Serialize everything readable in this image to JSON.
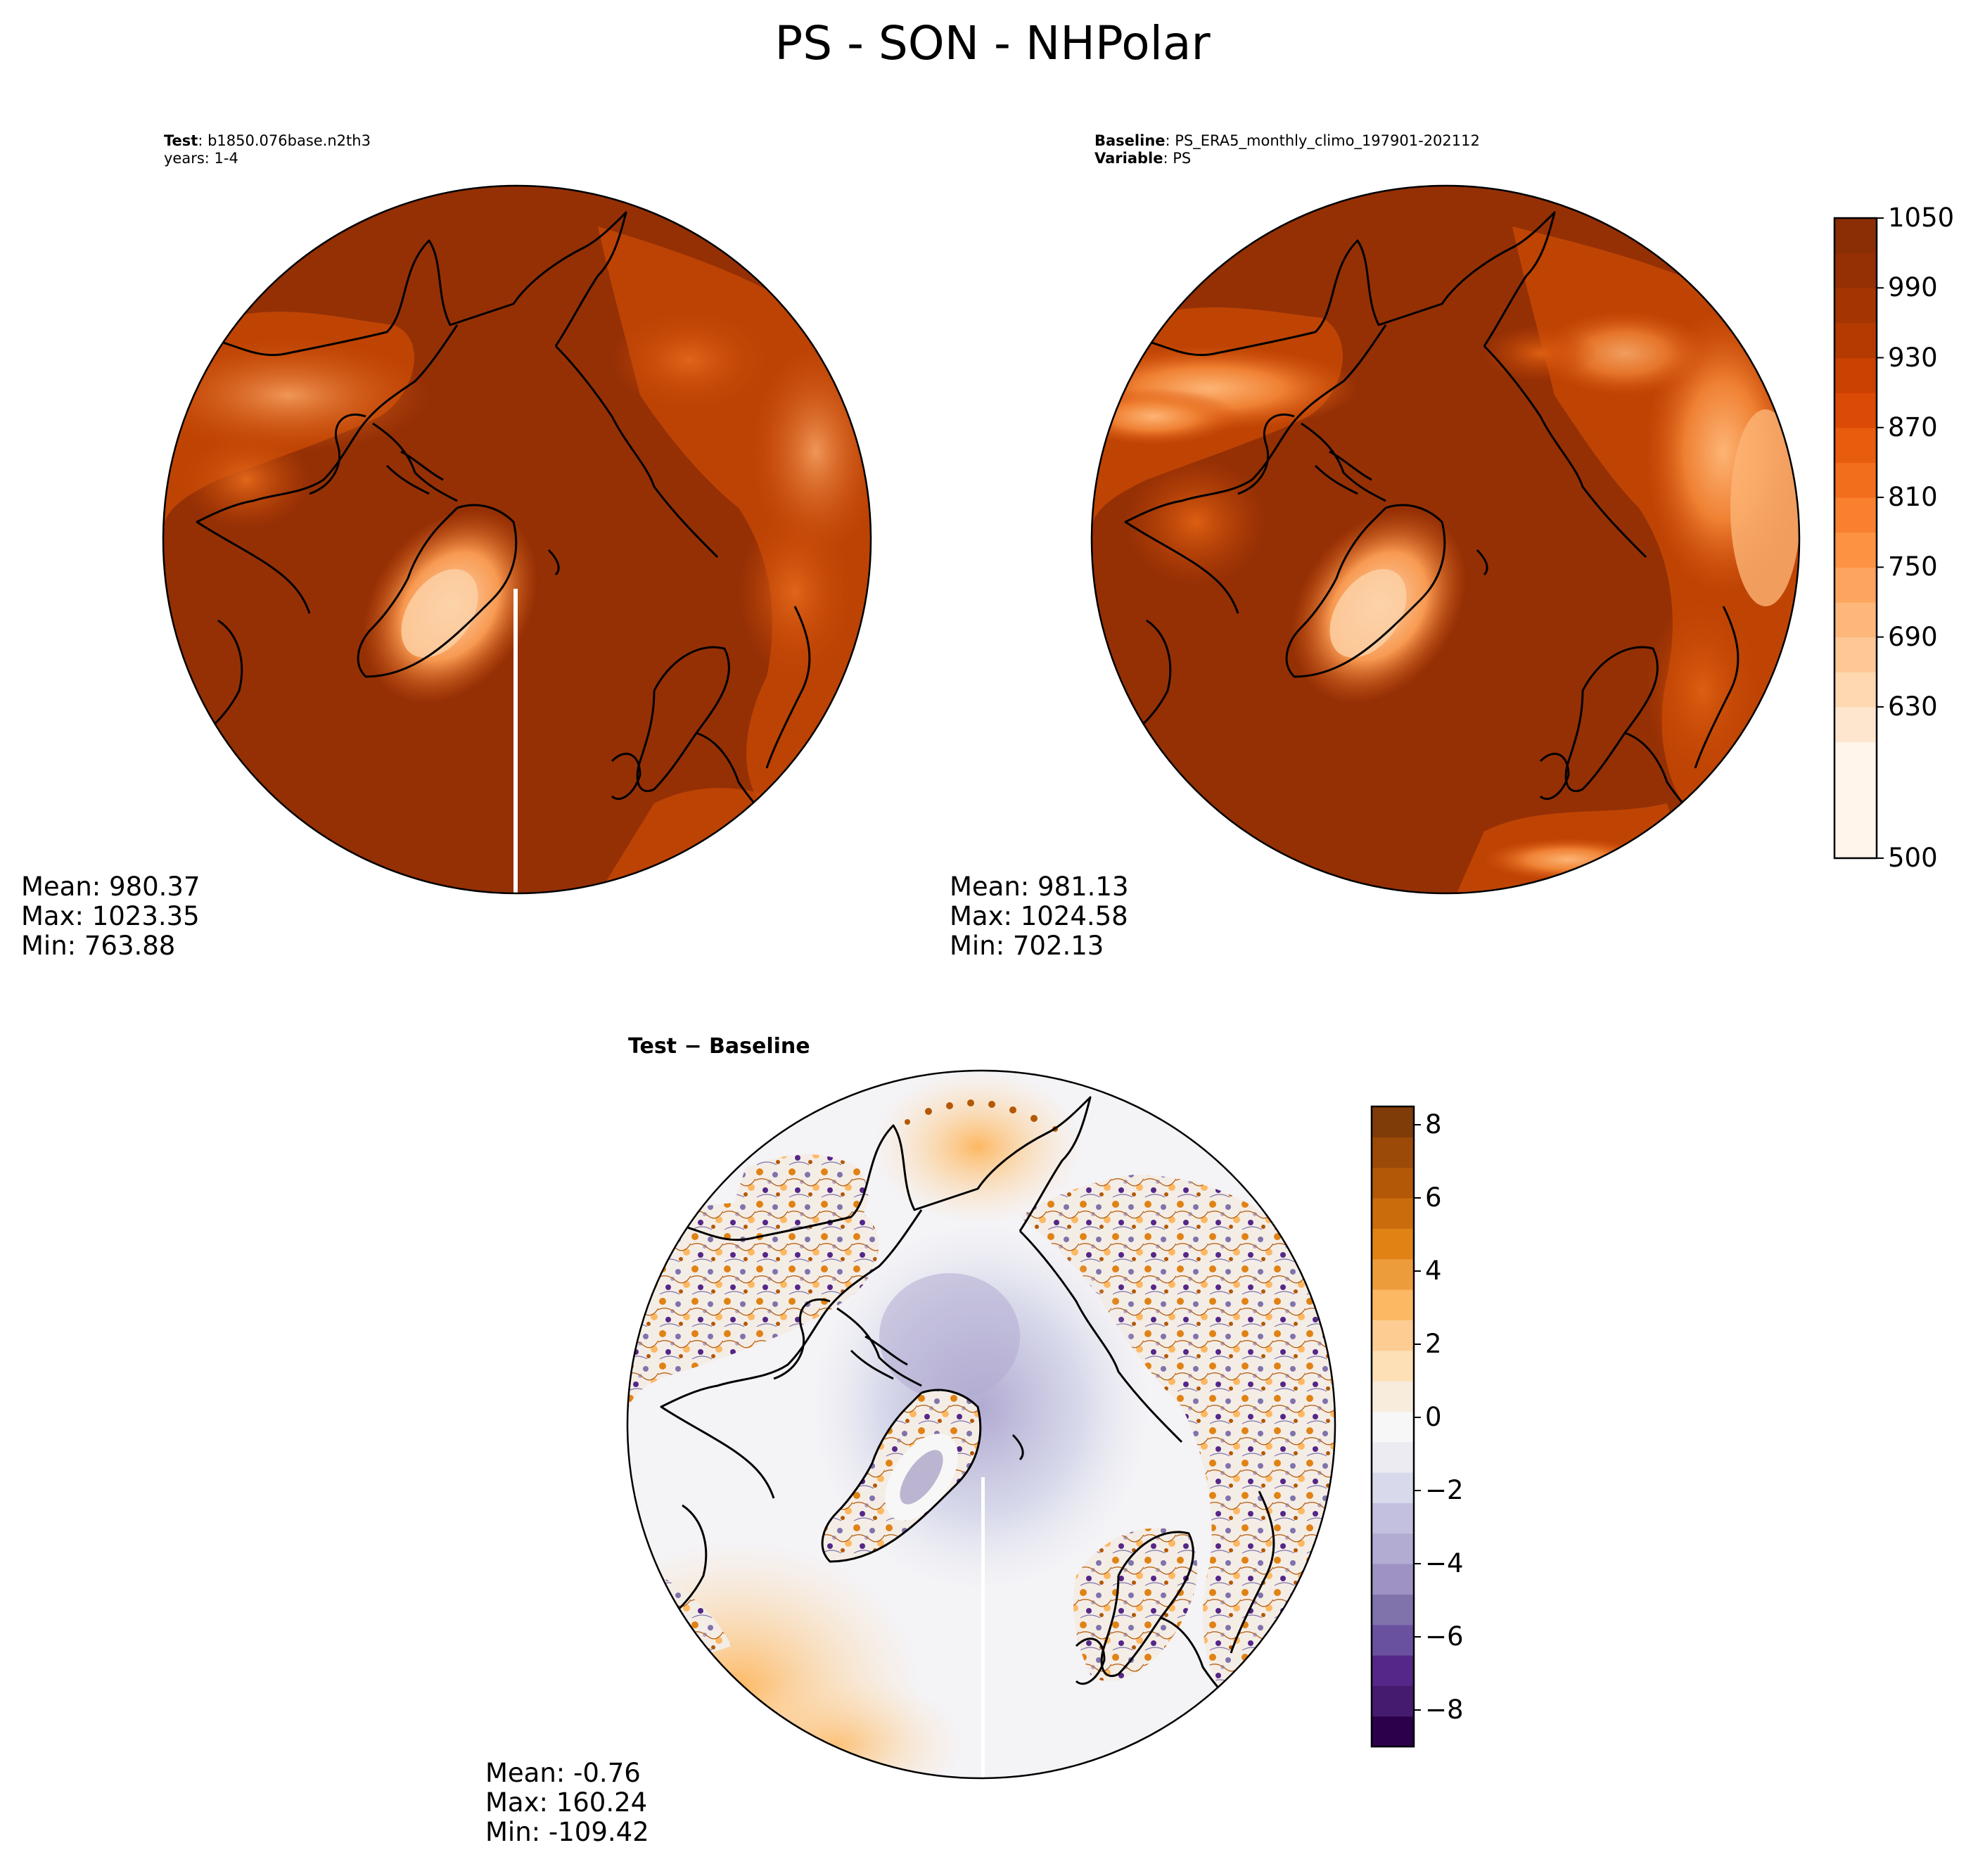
{
  "figure": {
    "title": "PS - SON - NHPolar"
  },
  "panels": {
    "test": {
      "label_bold": "Test",
      "label_value": "b1850.076base.n2th3",
      "line2": "years: 1-4",
      "stats": {
        "mean": "Mean: 980.37",
        "max": "Max: 1023.35",
        "min": "Min: 763.88"
      }
    },
    "baseline": {
      "label_bold": "Baseline",
      "label_value": "PS_ERA5_monthly_climo_197901-202112",
      "line2_bold": "Variable",
      "line2_value": "PS",
      "stats": {
        "mean": "Mean: 981.13",
        "max": "Max: 1024.58",
        "min": "Min: 702.13"
      }
    },
    "diff": {
      "title": "Test − Baseline",
      "stats": {
        "mean": "Mean: -0.76",
        "max": "Max: 160.24",
        "min": "Min: -109.42"
      }
    }
  },
  "chart_data": [
    {
      "type": "heatmap",
      "panel": "test",
      "projection": "north polar stereographic",
      "variable": "PS",
      "mean": 980.37,
      "max": 1023.35,
      "min": 763.88,
      "colormap": "Oranges",
      "shared_colorbar": true,
      "colorbar_range": [
        500,
        1050
      ]
    },
    {
      "type": "heatmap",
      "panel": "baseline",
      "projection": "north polar stereographic",
      "variable": "PS",
      "mean": 981.13,
      "max": 1024.58,
      "min": 702.13,
      "colormap": "Oranges",
      "colorbar": {
        "range": [
          500,
          1050
        ],
        "ticks": [
          1050,
          990,
          930,
          870,
          810,
          750,
          690,
          630,
          500
        ],
        "tick_labels": [
          "1050",
          "990",
          "930",
          "870",
          "810",
          "750",
          "690",
          "630",
          "500"
        ],
        "levels": [
          500,
          600,
          630,
          660,
          690,
          720,
          750,
          780,
          810,
          840,
          870,
          900,
          930,
          960,
          990,
          1020,
          1050
        ],
        "colors": [
          "#fff5eb",
          "#fee6ce",
          "#fdd8b0",
          "#fdc895",
          "#fdb77a",
          "#fda45f",
          "#fd9243",
          "#f8802f",
          "#f26d1c",
          "#e85c0e",
          "#db4b05",
          "#ca4102",
          "#b53a02",
          "#a43503",
          "#953005",
          "#8a2e06"
        ]
      }
    },
    {
      "type": "heatmap",
      "panel": "diff",
      "projection": "north polar stereographic",
      "variable": "PS difference",
      "mean": -0.76,
      "max": 160.24,
      "min": -109.42,
      "colormap": "PuOr_r",
      "colorbar": {
        "range": [
          -9,
          8.5
        ],
        "ticks": [
          8,
          6,
          4,
          2,
          0,
          -2,
          -4,
          -6,
          -8
        ],
        "tick_labels": [
          "8",
          "6",
          "4",
          "2",
          "0",
          "−2",
          "−4",
          "−6",
          "−8"
        ],
        "colors_top_to_bottom": [
          "#7f3b08",
          "#9b4a07",
          "#b35806",
          "#cb6c0c",
          "#e08214",
          "#ed9c3c",
          "#fdb863",
          "#fdcc92",
          "#fee0b6",
          "#f8ecdc",
          "#f7f7f7",
          "#ebebf1",
          "#d8daeb",
          "#c3c0df",
          "#b2abd2",
          "#9e92c2",
          "#8073ac",
          "#6a51a0",
          "#542788",
          "#451b6f",
          "#2d004b"
        ]
      }
    }
  ]
}
